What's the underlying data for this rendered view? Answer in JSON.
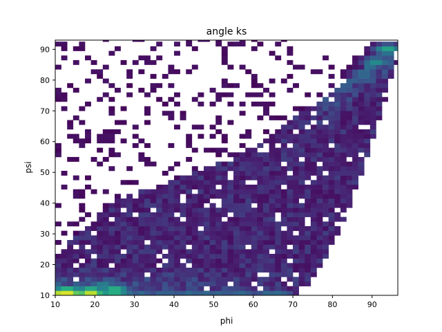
{
  "chart_data": {
    "type": "heatmap",
    "title": "angle ks",
    "xlabel": "phi",
    "ylabel": "psi",
    "xlim": [
      10,
      96.5
    ],
    "ylim": [
      10,
      93
    ],
    "xticks": [
      10,
      20,
      30,
      40,
      50,
      60,
      70,
      80,
      90
    ],
    "yticks": [
      10,
      20,
      30,
      40,
      50,
      60,
      70,
      80,
      90
    ],
    "xtick_labels": [
      "10",
      "20",
      "30",
      "40",
      "50",
      "60",
      "70",
      "80",
      "90"
    ],
    "ytick_labels": [
      "10",
      "20",
      "30",
      "40",
      "50",
      "60",
      "70",
      "80",
      "90"
    ],
    "bin_width": 1.5,
    "colormap": "viridis",
    "empty_bins": "white",
    "density_description": "2D histogram of (phi, psi); densest along psi≈11 for phi 10–28 and along the upper diagonal phi≈psi near 90–96; sparse outliers in the upper-left region.",
    "hotspots": [
      {
        "phi": 13,
        "psi": 11,
        "level": 1.0
      },
      {
        "phi": 19,
        "psi": 11,
        "level": 0.95
      },
      {
        "phi": 25,
        "psi": 11.5,
        "level": 0.75
      },
      {
        "phi": 22,
        "psi": 13,
        "level": 0.5
      },
      {
        "phi": 94,
        "psi": 90,
        "level": 0.6
      },
      {
        "phi": 91,
        "psi": 86,
        "level": 0.5
      },
      {
        "phi": 88,
        "psi": 82,
        "level": 0.4
      }
    ]
  }
}
